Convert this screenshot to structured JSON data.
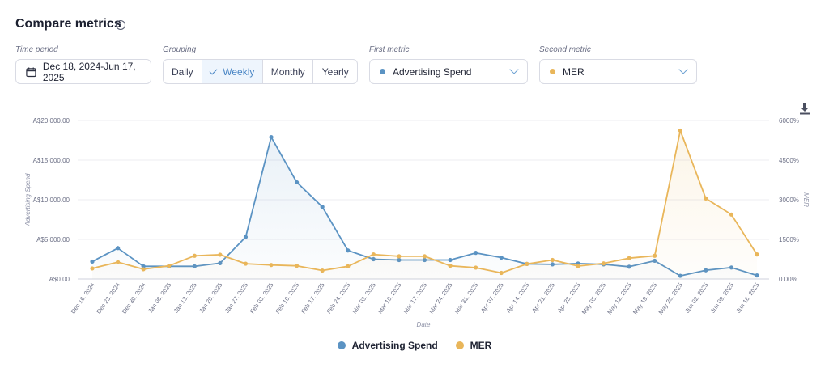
{
  "header": {
    "title": "Compare metrics",
    "info_icon": "info-icon"
  },
  "filters": {
    "time_period": {
      "label": "Time period",
      "value": "Dec 18, 2024-Jun 17, 2025"
    },
    "grouping": {
      "label": "Grouping",
      "options": [
        "Daily",
        "Weekly",
        "Monthly",
        "Yearly"
      ],
      "selected": "Weekly"
    },
    "first_metric": {
      "label": "First metric",
      "value": "Advertising Spend",
      "color": "#5b93c3"
    },
    "second_metric": {
      "label": "Second metric",
      "value": "MER",
      "color": "#e9b65a"
    }
  },
  "download_icon": "download-icon",
  "chart_data": {
    "type": "line",
    "x": [
      "Dec 16, 2024",
      "Dec 23, 2024",
      "Dec 30, 2024",
      "Jan 06, 2025",
      "Jan 13, 2025",
      "Jan 20, 2025",
      "Jan 27, 2025",
      "Feb 03, 2025",
      "Feb 10, 2025",
      "Feb 17, 2025",
      "Feb 24, 2025",
      "Mar 03, 2025",
      "Mar 10, 2025",
      "Mar 17, 2025",
      "Mar 24, 2025",
      "Mar 31, 2025",
      "Apr 07, 2025",
      "Apr 14, 2025",
      "Apr 21, 2025",
      "Apr 28, 2025",
      "May 05, 2025",
      "May 12, 2025",
      "May 19, 2025",
      "May 26, 2025",
      "Jun 02, 2025",
      "Jun 09, 2025",
      "Jun 16, 2025"
    ],
    "xlabel": "Date",
    "y_left": {
      "label": "Advertising Spend",
      "ticks": [
        "A$0.00",
        "A$5,000.00",
        "A$10,000.00",
        "A$15,000.00",
        "A$20,000.00"
      ],
      "range": [
        0,
        20000
      ]
    },
    "y_right": {
      "label": "MER",
      "ticks": [
        "0.00%",
        "1500%",
        "3000%",
        "4500%",
        "6000%"
      ],
      "range": [
        0,
        6000
      ]
    },
    "series": [
      {
        "name": "Advertising Spend",
        "axis": "left",
        "color": "#5b93c3",
        "values": [
          2200,
          3900,
          1600,
          1600,
          1600,
          2000,
          5300,
          17900,
          12200,
          9100,
          3600,
          2500,
          2400,
          2400,
          2400,
          3300,
          2700,
          1900,
          1850,
          1950,
          1850,
          1550,
          2300,
          400,
          1100,
          1450,
          450
        ]
      },
      {
        "name": "MER",
        "axis": "right",
        "color": "#e9b65a",
        "values": [
          400,
          640,
          370,
          500,
          880,
          920,
          580,
          530,
          500,
          320,
          480,
          930,
          860,
          860,
          500,
          430,
          230,
          570,
          720,
          490,
          590,
          790,
          880,
          5620,
          3050,
          2440,
          930
        ]
      }
    ],
    "grid": true,
    "legend": "bottom-center"
  }
}
